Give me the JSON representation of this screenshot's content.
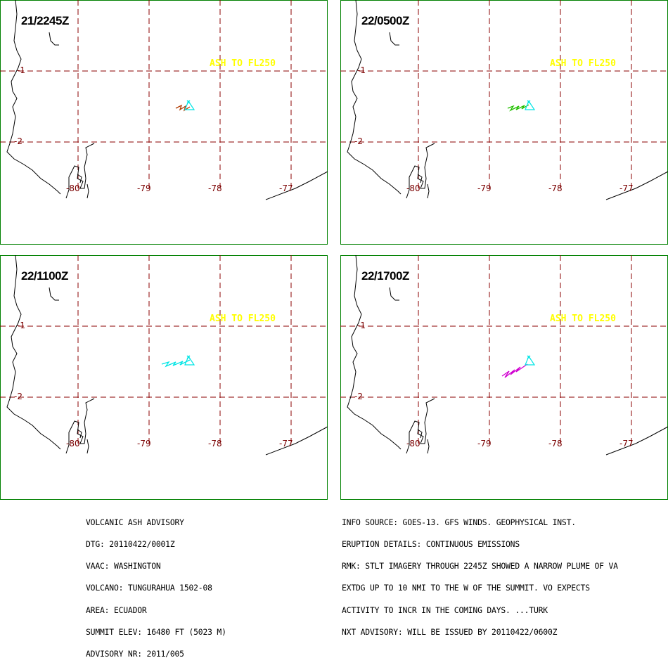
{
  "panels": [
    {
      "time": "21/2245Z",
      "plume_color": "#b23a00",
      "plume_style": "short-brown"
    },
    {
      "time": "22/0500Z",
      "plume_color": "#22c000",
      "plume_style": "green"
    },
    {
      "time": "22/1100Z",
      "plume_color": "#00e5e5",
      "plume_style": "cyan-long"
    },
    {
      "time": "22/1700Z",
      "plume_color": "#d000d0",
      "plume_style": "magenta"
    }
  ],
  "ash_label": "ASH TO FL250",
  "lat_labels": [
    "-1",
    "-2"
  ],
  "lon_labels": [
    "-80",
    "-79",
    "-78",
    "-77"
  ],
  "colors": {
    "frame": "#008000",
    "grid": "#8b0000",
    "coast": "#000000",
    "volcano": "#00e5e5",
    "ash_label": "#ffff00"
  },
  "advisory_left": [
    "VOLCANIC ASH ADVISORY",
    "DTG: 20110422/0001Z",
    "VAAC: WASHINGTON",
    "VOLCANO: TUNGURAHUA 1502-08",
    "AREA: ECUADOR",
    "SUMMIT ELEV: 16480 FT (5023 M)",
    "ADVISORY NR: 2011/005"
  ],
  "advisory_right": [
    "INFO SOURCE: GOES-13. GFS WINDS. GEOPHYSICAL INST.",
    "ERUPTION DETAILS: CONTINUOUS EMISSIONS",
    "RMK: STLT IMAGERY THROUGH 2245Z SHOWED A NARROW PLUME OF VA",
    "EXTDG UP TO 10 NMI TO THE W OF THE SUMMIT. VO EXPECTS",
    "ACTIVITY TO INCR IN THE COMING DAYS. ...TURK",
    "NXT ADVISORY: WILL BE ISSUED BY 20110422/0600Z"
  ]
}
